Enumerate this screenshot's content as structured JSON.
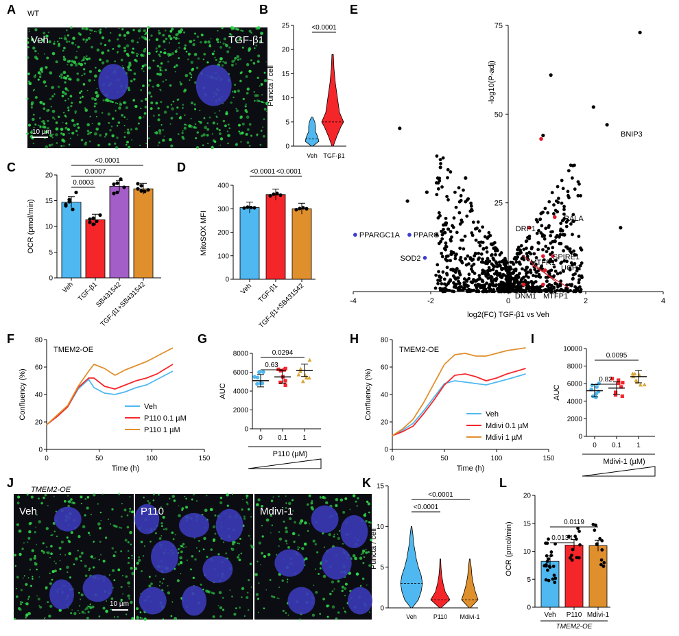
{
  "panel_letters": [
    "A",
    "B",
    "C",
    "D",
    "E",
    "F",
    "G",
    "H",
    "I",
    "J",
    "K",
    "L"
  ],
  "colors": {
    "veh": "#4fb8f0",
    "tgf": "#f5262a",
    "sb": "#a45ec8",
    "combo": "#e08f2d",
    "blue_pt": "#3c3cd0",
    "red_pt": "#e3192a",
    "gold": "#d8a638",
    "darkred": "#c0202a"
  },
  "panelA": {
    "genotype": "WT",
    "img_left": "Veh",
    "img_right": "TGF-β1",
    "scale": "10 µm"
  },
  "panelJ": {
    "title": "TMEM2-OE",
    "imgs": [
      "Veh",
      "P110",
      "Mdivi-1"
    ],
    "scale": "10 µm"
  },
  "chart_data": [
    {
      "id": "B",
      "type": "violin",
      "ylabel": "Puncta / cell",
      "ylim": [
        0,
        25
      ],
      "yticks": [
        "0",
        "5",
        "10",
        "15",
        "20",
        "25"
      ],
      "categories": [
        "Veh",
        "TGF-β1"
      ],
      "medians": [
        1.5,
        5
      ],
      "pvalue": "<0.0001"
    },
    {
      "id": "C",
      "type": "bar",
      "ylabel": "OCR (pmol/min)",
      "ylim": [
        0,
        20
      ],
      "yticks": [
        "0",
        "5",
        "10",
        "15",
        "20"
      ],
      "categories": [
        "Veh",
        "TGF-β1",
        "SB431542",
        "TGF-β1+SB431542"
      ],
      "values": [
        14.7,
        11.3,
        17.8,
        17.3
      ],
      "points": [
        [
          14.3,
          15.2,
          13.3,
          16.6,
          14.0,
          14.8
        ],
        [
          11.4,
          10.4,
          11.0,
          12.2,
          10.8,
          11.6
        ],
        [
          18.2,
          16.6,
          19.2,
          17.6,
          16.4,
          18.4
        ],
        [
          17.3,
          17.9,
          16.8,
          17.1,
          18.3,
          16.9
        ]
      ],
      "pvalues": [
        "0.0003",
        "0.0007",
        "<0.0001"
      ]
    },
    {
      "id": "D",
      "type": "bar",
      "ylabel": "MitoSOX MFI",
      "ylim": [
        0,
        400
      ],
      "yticks": [
        "0",
        "100",
        "200",
        "300",
        "400"
      ],
      "categories": [
        "Veh",
        "TGF-β1",
        "TGF-β1+SB431542"
      ],
      "values": [
        305,
        360,
        300
      ],
      "points": [
        [
          303,
          307,
          305,
          304
        ],
        [
          355,
          362,
          365,
          358
        ],
        [
          296,
          301,
          304,
          300
        ]
      ],
      "pvalues": [
        "<0.0001",
        "<0.0001"
      ]
    },
    {
      "id": "E",
      "type": "scatter",
      "title": "volcano",
      "xlabel": "log2(FC) TGF-β1 vs Veh",
      "ylabel": "-log10(P-adj)",
      "xlim": [
        -4,
        4
      ],
      "ylim": [
        0,
        75
      ],
      "xticks": [
        "-4",
        "-2",
        "0",
        "2",
        "4"
      ],
      "yticks": [
        "25",
        "50",
        "75"
      ],
      "labels_blue": [
        "PPARGC1A",
        "PPARG",
        "SOD2"
      ],
      "labels_red": [
        "BNIP3",
        "RALA",
        "DRP1",
        "MTFR1",
        "SPIRE1",
        "UCP2",
        "DNM1",
        "MTFP1"
      ]
    },
    {
      "id": "F",
      "type": "line",
      "title": "TMEM2-OE",
      "xlabel": "Time (h)",
      "ylabel": "Confluency (%)",
      "xlim": [
        0,
        150
      ],
      "ylim": [
        0,
        80
      ],
      "xticks": [
        "0",
        "50",
        "100",
        "150"
      ],
      "yticks": [
        "0",
        "20",
        "40",
        "60",
        "80"
      ],
      "x": [
        0,
        10,
        20,
        30,
        40,
        45,
        55,
        65,
        75,
        85,
        95,
        105,
        120
      ],
      "series": [
        {
          "name": "Veh",
          "values": [
            18,
            24,
            31,
            44,
            51,
            45,
            41,
            40,
            42,
            45,
            47,
            51,
            57
          ]
        },
        {
          "name": "P110 0.1 µM",
          "values": [
            18,
            24,
            31,
            45,
            52,
            52,
            46,
            44,
            47,
            50,
            52,
            55,
            62
          ]
        },
        {
          "name": "P110 1 µM",
          "values": [
            18,
            25,
            32,
            46,
            57,
            62,
            59,
            54,
            58,
            61,
            64,
            68,
            74
          ]
        }
      ]
    },
    {
      "id": "G",
      "type": "scatter",
      "ylabel": "AUC",
      "ylim": [
        0,
        8000
      ],
      "yticks": [
        "0",
        "2000",
        "4000",
        "6000",
        "8000"
      ],
      "categories": [
        "0",
        "0.1",
        "1"
      ],
      "xlabel": "P110 (µM)",
      "means": [
        5100,
        5500,
        6200
      ],
      "pvalues": [
        "0.63",
        "0.0294"
      ]
    },
    {
      "id": "H",
      "type": "line",
      "title": "TMEM2-OE",
      "xlabel": "Time (h)",
      "ylabel": "Confluency (%)",
      "xlim": [
        0,
        150
      ],
      "ylim": [
        0,
        80
      ],
      "xticks": [
        "0",
        "50",
        "100",
        "150"
      ],
      "yticks": [
        "0",
        "20",
        "40",
        "60",
        "80"
      ],
      "x": [
        0,
        10,
        20,
        30,
        40,
        50,
        60,
        70,
        80,
        90,
        100,
        110,
        128
      ],
      "series": [
        {
          "name": "Veh",
          "values": [
            10,
            14,
            19,
            28,
            38,
            48,
            50,
            49,
            48,
            47,
            49,
            51,
            55
          ]
        },
        {
          "name": "Mdivi 0.1 µM",
          "values": [
            10,
            13,
            17,
            26,
            36,
            47,
            54,
            55,
            53,
            50,
            52,
            55,
            59
          ]
        },
        {
          "name": "Mdivi 1 µM",
          "values": [
            10,
            15,
            22,
            34,
            48,
            62,
            69,
            70,
            68,
            68,
            70,
            72,
            74
          ]
        }
      ]
    },
    {
      "id": "I",
      "type": "scatter",
      "ylabel": "AUC",
      "ylim": [
        0,
        10000
      ],
      "yticks": [
        "0",
        "2000",
        "4000",
        "6000",
        "8000",
        "10000"
      ],
      "categories": [
        "0",
        "0.1",
        "1"
      ],
      "xlabel": "Mdivi-1 (µM)",
      "means": [
        5200,
        5500,
        6800
      ],
      "pvalues": [
        "0.82",
        "0.0095"
      ]
    },
    {
      "id": "K",
      "type": "violin",
      "ylabel": "Puncta / cell",
      "ylim": [
        0,
        15
      ],
      "yticks": [
        "0",
        "5",
        "10",
        "15"
      ],
      "categories": [
        "Veh",
        "P110",
        "Mdivi-1"
      ],
      "medians": [
        3,
        1,
        1
      ],
      "pvalues": [
        "<0.0001",
        "<0.0001"
      ]
    },
    {
      "id": "L",
      "type": "bar",
      "ylabel": "OCR (pmol/min)",
      "ylim": [
        0,
        20
      ],
      "yticks": [
        "0",
        "5",
        "10",
        "15",
        "20"
      ],
      "categories": [
        "Veh",
        "P110",
        "Mdivi-1"
      ],
      "values": [
        8.2,
        11.1,
        11.0
      ],
      "xlabel": "TMEM2-OE",
      "pvalues": [
        "0.0134",
        "0.0119"
      ]
    }
  ]
}
